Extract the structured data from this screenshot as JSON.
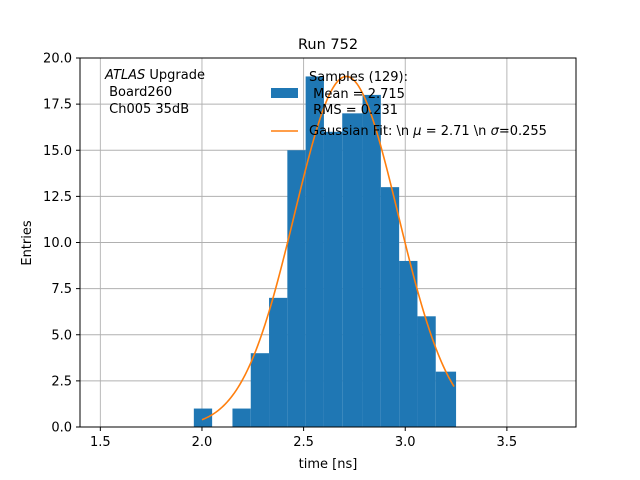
{
  "chart_data": {
    "type": "bar",
    "title": "Run 752",
    "xlabel": "time [ns]",
    "ylabel": "Entries",
    "xlim": [
      1.4,
      3.84
    ],
    "ylim": [
      0,
      20
    ],
    "grid": true,
    "legend_placement": "top-right",
    "x_ticks": [
      1.5,
      2.0,
      2.5,
      3.0,
      3.5
    ],
    "x_tick_labels": [
      "1.5",
      "2.0",
      "2.5",
      "3.0",
      "3.5"
    ],
    "y_ticks": [
      0,
      2.5,
      5,
      7.5,
      10,
      12.5,
      15,
      17.5,
      20
    ],
    "y_tick_labels": [
      "0.0",
      "2.5",
      "5.0",
      "7.5",
      "10.0",
      "12.5",
      "15.0",
      "17.5",
      "20.0"
    ],
    "histogram": {
      "bin_edges": [
        1.96,
        2.05,
        2.15,
        2.24,
        2.33,
        2.42,
        2.51,
        2.6,
        2.69,
        2.79,
        2.88,
        2.97,
        3.06,
        3.15,
        3.25
      ],
      "counts": [
        1,
        0,
        1,
        4,
        7,
        15,
        19,
        16,
        17,
        18,
        13,
        9,
        6,
        3
      ],
      "color": "#1f77b4"
    },
    "fit_curve": {
      "mu": 2.71,
      "sigma": 0.255,
      "amplitude": 19,
      "x_range": [
        2.0,
        3.24
      ],
      "color": "#ff7f0e"
    },
    "legend": {
      "samples_lines": [
        "Samples (129):",
        " Mean = 2.715",
        " RMS = 0.231"
      ],
      "fit_label_prefix": "Gaussian Fit: \\n ",
      "fit_label_mu": "μ",
      "fit_label_mid": " = 2.71 \\n ",
      "fit_label_sigma": "σ",
      "fit_label_end": "=0.255"
    },
    "annotation": {
      "italic": "ATLAS",
      "rest": " Upgrade",
      "line2": " Board260",
      "line3": " Ch005 35dB"
    }
  }
}
